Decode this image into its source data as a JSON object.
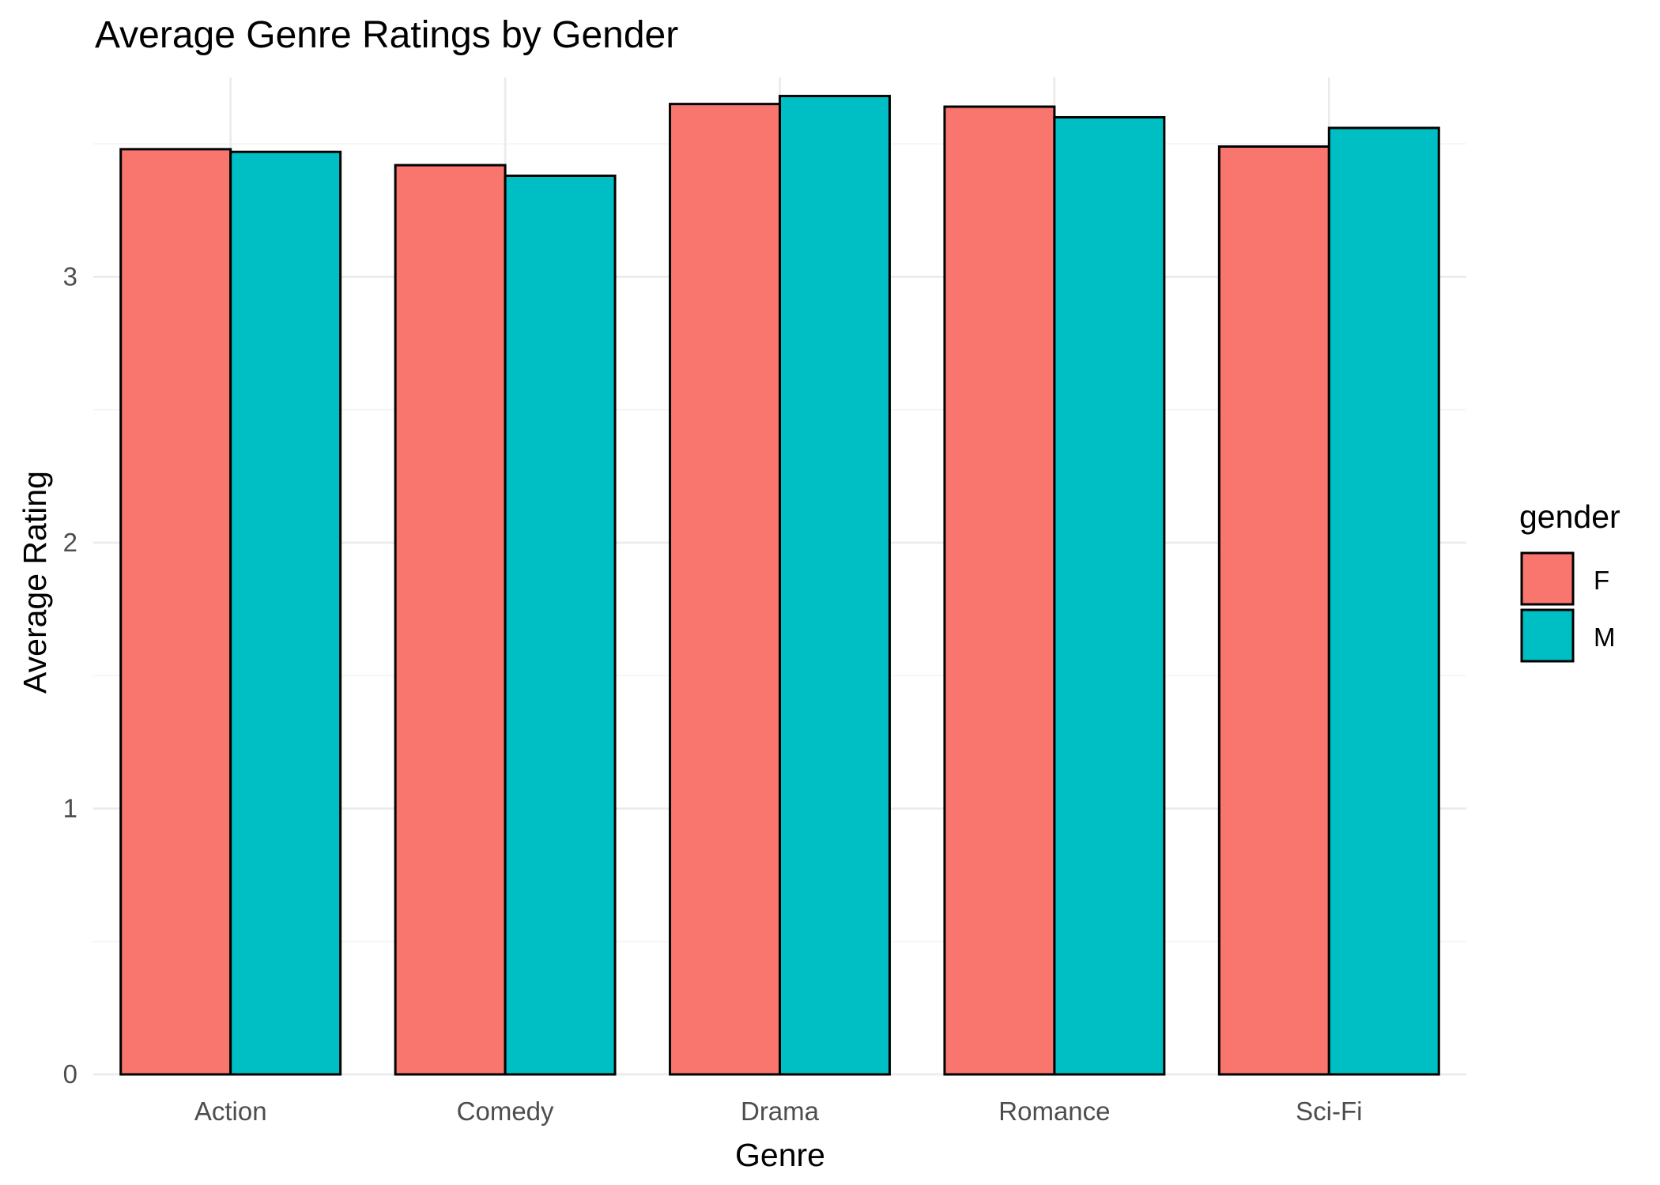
{
  "colors": {
    "F": "#F8766D",
    "M": "#00BFC4"
  },
  "chart_data": {
    "type": "bar",
    "title": "Average Genre Ratings by Gender",
    "xlabel": "Genre",
    "ylabel": "Average Rating",
    "categories": [
      "Action",
      "Comedy",
      "Drama",
      "Romance",
      "Sci-Fi"
    ],
    "series": [
      {
        "name": "F",
        "values": [
          3.48,
          3.42,
          3.65,
          3.64,
          3.49
        ]
      },
      {
        "name": "M",
        "values": [
          3.47,
          3.38,
          3.68,
          3.6,
          3.56
        ]
      }
    ],
    "ylim": [
      0,
      3.75
    ],
    "yticks": [
      "0",
      "1",
      "2",
      "3"
    ],
    "grid": true,
    "legend": {
      "title": "gender",
      "position": "right",
      "entries": [
        "F",
        "M"
      ]
    }
  }
}
